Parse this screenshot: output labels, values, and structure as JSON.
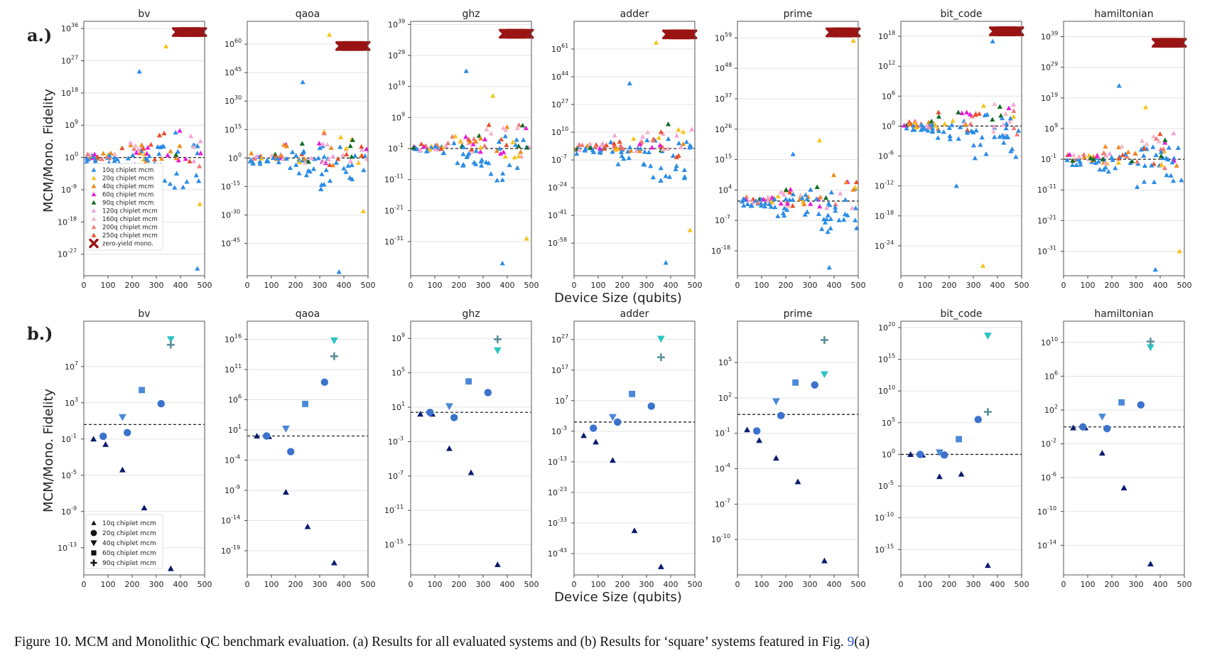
{
  "figure": {
    "row_a_label": "a.)",
    "row_b_label": "b.)",
    "ylabel": "MCM/Mono. Fidelity",
    "xlabel": "Device Size (qubits)",
    "x_ticks": [
      "0",
      "100",
      "200",
      "300",
      "400",
      "500"
    ],
    "caption_prefix": "Figure 10.   MCM and Monolithic QC benchmark evaluation. (a) Results for all evaluated systems and (b) Results for ‘square’ systems featured in Fig. ",
    "caption_ref": "9",
    "caption_suffix": "(a)"
  },
  "legend_a": [
    {
      "label": "10q chiplet mcm",
      "color": "#2b8ce6",
      "marker": "triangle"
    },
    {
      "label": "20q chiplet mcm",
      "color": "#f7c21a",
      "marker": "triangle"
    },
    {
      "label": "40q chiplet mcm",
      "color": "#f08a1c",
      "marker": "triangle"
    },
    {
      "label": "60q chiplet mcm",
      "color": "#e81ad8",
      "marker": "triangle"
    },
    {
      "label": "90q chiplet mcm",
      "color": "#116b22",
      "marker": "triangle"
    },
    {
      "label": "120q chiplet mcm",
      "color": "#f5a6d8",
      "marker": "triangle"
    },
    {
      "label": "160q chiplet mcm",
      "color": "#f2b8c8",
      "marker": "triangle"
    },
    {
      "label": "200q chiplet mcm",
      "color": "#f07a7a",
      "marker": "triangle"
    },
    {
      "label": "250q chiplet mcm",
      "color": "#e8502a",
      "marker": "triangle"
    },
    {
      "label": "zero-yield mono.",
      "color": "#9a1414",
      "marker": "x"
    }
  ],
  "legend_b": [
    {
      "label": "10q chiplet mcm",
      "marker": "triangle"
    },
    {
      "label": "20q chiplet mcm",
      "marker": "circle"
    },
    {
      "label": "40q chiplet mcm",
      "marker": "tri-down"
    },
    {
      "label": "60q chiplet mcm",
      "marker": "square"
    },
    {
      "label": "90q chiplet mcm",
      "marker": "plus"
    }
  ],
  "chart_data": [
    {
      "panel": "a",
      "type": "scatter",
      "title": "bv",
      "ylim_log10": [
        -33,
        38
      ],
      "yticks": [
        {
          "e": 36,
          "t": "36"
        },
        {
          "e": 27,
          "t": "27"
        },
        {
          "e": 18,
          "t": "18"
        },
        {
          "e": 9,
          "t": "9"
        },
        {
          "e": 0,
          "t": "0"
        },
        {
          "e": -9,
          "t": "-9"
        },
        {
          "e": -18,
          "t": "-18"
        },
        {
          "e": -27,
          "t": "-27"
        }
      ],
      "baseline_log10": 0,
      "zero_yield_log10": 35,
      "extremes_log10": [
        24,
        31,
        7,
        -13,
        -31
      ]
    },
    {
      "panel": "a",
      "type": "scatter",
      "title": "qaoa",
      "ylim_log10": [
        -62,
        72
      ],
      "yticks": [
        {
          "e": 60,
          "t": "60"
        },
        {
          "e": 45,
          "t": "45"
        },
        {
          "e": 30,
          "t": "30"
        },
        {
          "e": 15,
          "t": "15"
        },
        {
          "e": 0,
          "t": "0"
        },
        {
          "e": -15,
          "t": "-15"
        },
        {
          "e": -30,
          "t": "-30"
        },
        {
          "e": -45,
          "t": "-45"
        }
      ],
      "baseline_log10": 0,
      "zero_yield_log10": 59,
      "extremes_log10": [
        40,
        65,
        -60,
        -28
      ]
    },
    {
      "panel": "a",
      "type": "scatter",
      "title": "ghz",
      "ylim_log10": [
        -42,
        40
      ],
      "yticks": [
        {
          "e": 39,
          "t": "39"
        },
        {
          "e": 29,
          "t": "29"
        },
        {
          "e": 19,
          "t": "19"
        },
        {
          "e": 9,
          "t": "9"
        },
        {
          "e": -1,
          "t": "-1"
        },
        {
          "e": -11,
          "t": "-11"
        },
        {
          "e": -21,
          "t": "-21"
        },
        {
          "e": -31,
          "t": "-31"
        }
      ],
      "baseline_log10": -1,
      "zero_yield_log10": 36,
      "extremes_log10": [
        24,
        16,
        -38,
        -30
      ]
    },
    {
      "panel": "a",
      "type": "scatter",
      "title": "adder",
      "ylim_log10": [
        -78,
        78
      ],
      "yticks": [
        {
          "e": 61,
          "t": "61"
        },
        {
          "e": 44,
          "t": "44"
        },
        {
          "e": 27,
          "t": "27"
        },
        {
          "e": 10,
          "t": "10"
        },
        {
          "e": -7,
          "t": "-7"
        },
        {
          "e": -24,
          "t": "-24"
        },
        {
          "e": -41,
          "t": "-41"
        },
        {
          "e": -58,
          "t": "-58"
        }
      ],
      "baseline_log10": 0,
      "zero_yield_log10": 70,
      "extremes_log10": [
        40,
        65,
        -70,
        -50
      ]
    },
    {
      "panel": "a",
      "type": "scatter",
      "title": "prime",
      "ylim_log10": [
        -27,
        65
      ],
      "yticks": [
        {
          "e": 59,
          "t": "59"
        },
        {
          "e": 48,
          "t": "48"
        },
        {
          "e": 37,
          "t": "37"
        },
        {
          "e": 26,
          "t": "26"
        },
        {
          "e": 15,
          "t": "15"
        },
        {
          "e": 4,
          "t": "4"
        },
        {
          "e": -7,
          "t": "-7"
        },
        {
          "e": -18,
          "t": "-18"
        }
      ],
      "baseline_log10": 0,
      "zero_yield_log10": 61,
      "extremes_log10": [
        17,
        22,
        -24,
        58
      ]
    },
    {
      "panel": "a",
      "type": "scatter",
      "title": "bit_code",
      "ylim_log10": [
        -30,
        21
      ],
      "yticks": [
        {
          "e": 18,
          "t": "18"
        },
        {
          "e": 12,
          "t": "12"
        },
        {
          "e": 6,
          "t": "6"
        },
        {
          "e": 0,
          "t": "0"
        },
        {
          "e": -6,
          "t": "-6"
        },
        {
          "e": -12,
          "t": "-12"
        },
        {
          "e": -18,
          "t": "-18"
        },
        {
          "e": -24,
          "t": "-24"
        }
      ],
      "baseline_log10": 0,
      "zero_yield_log10": 19,
      "extremes_log10": [
        -12,
        -28,
        17
      ]
    },
    {
      "panel": "a",
      "type": "scatter",
      "title": "hamiltonian",
      "ylim_log10": [
        -39,
        44
      ],
      "yticks": [
        {
          "e": 39,
          "t": "39"
        },
        {
          "e": 29,
          "t": "29"
        },
        {
          "e": 19,
          "t": "19"
        },
        {
          "e": 9,
          "t": "9"
        },
        {
          "e": -1,
          "t": "-1"
        },
        {
          "e": -11,
          "t": "-11"
        },
        {
          "e": -21,
          "t": "-21"
        },
        {
          "e": -31,
          "t": "-31"
        }
      ],
      "baseline_log10": -1,
      "zero_yield_log10": 37,
      "extremes_log10": [
        23,
        16,
        -37,
        -31
      ]
    },
    {
      "panel": "b",
      "type": "scatter",
      "title": "bv",
      "ylim_log10": [
        -16,
        12
      ],
      "yticks": [
        {
          "e": 7,
          "t": "7"
        },
        {
          "e": 3,
          "t": "3"
        },
        {
          "e": -1,
          "t": "-1"
        },
        {
          "e": -5,
          "t": "-5"
        },
        {
          "e": -9,
          "t": "-9"
        },
        {
          "e": -13,
          "t": "-13"
        }
      ],
      "baseline_log10": 0.6,
      "points": [
        {
          "x": 40,
          "y": -1,
          "s": 0
        },
        {
          "x": 90,
          "y": -1.6,
          "s": 0
        },
        {
          "x": 160,
          "y": -4.4,
          "s": 0
        },
        {
          "x": 250,
          "y": -8.6,
          "s": 0
        },
        {
          "x": 360,
          "y": -15.3,
          "s": 0
        },
        {
          "x": 80,
          "y": -0.7,
          "s": 1
        },
        {
          "x": 180,
          "y": -0.3,
          "s": 1
        },
        {
          "x": 320,
          "y": 2.9,
          "s": 1
        },
        {
          "x": 160,
          "y": 1.4,
          "s": 2
        },
        {
          "x": 360,
          "y": 10,
          "s": 2,
          "c": "#2ec4c4"
        },
        {
          "x": 240,
          "y": 4.4,
          "s": 3
        },
        {
          "x": 360,
          "y": 9.4,
          "s": 4
        }
      ]
    },
    {
      "panel": "b",
      "type": "scatter",
      "title": "qaoa",
      "ylim_log10": [
        -23,
        19
      ],
      "yticks": [
        {
          "e": 16,
          "t": "16"
        },
        {
          "e": 11,
          "t": "11"
        },
        {
          "e": 6,
          "t": "6"
        },
        {
          "e": 1,
          "t": "1"
        },
        {
          "e": -4,
          "t": "-4"
        },
        {
          "e": -9,
          "t": "-9"
        },
        {
          "e": -14,
          "t": "-14"
        },
        {
          "e": -19,
          "t": "-19"
        }
      ],
      "baseline_log10": 0,
      "points": [
        {
          "x": 40,
          "y": 0,
          "s": 0
        },
        {
          "x": 90,
          "y": -0.1,
          "s": 0
        },
        {
          "x": 160,
          "y": -9.3,
          "s": 0
        },
        {
          "x": 250,
          "y": -15,
          "s": 0
        },
        {
          "x": 360,
          "y": -21,
          "s": 0
        },
        {
          "x": 80,
          "y": 0,
          "s": 1
        },
        {
          "x": 180,
          "y": -2.6,
          "s": 1
        },
        {
          "x": 320,
          "y": 8.9,
          "s": 1
        },
        {
          "x": 160,
          "y": 1.2,
          "s": 2
        },
        {
          "x": 360,
          "y": 15.8,
          "s": 2,
          "c": "#2ec4c4"
        },
        {
          "x": 240,
          "y": 5.3,
          "s": 3
        },
        {
          "x": 360,
          "y": 13.2,
          "s": 4
        }
      ]
    },
    {
      "panel": "b",
      "type": "scatter",
      "title": "ghz",
      "ylim_log10": [
        -18.5,
        11
      ],
      "yticks": [
        {
          "e": 9,
          "t": "9"
        },
        {
          "e": 5,
          "t": "5"
        },
        {
          "e": 1,
          "t": "1"
        },
        {
          "e": -3,
          "t": "-3"
        },
        {
          "e": -7,
          "t": "-7"
        },
        {
          "e": -11,
          "t": "-11"
        },
        {
          "e": -15,
          "t": "-15"
        }
      ],
      "baseline_log10": 0.4,
      "points": [
        {
          "x": 40,
          "y": 0.2,
          "s": 0
        },
        {
          "x": 90,
          "y": 0.2,
          "s": 0
        },
        {
          "x": 160,
          "y": -3.8,
          "s": 0
        },
        {
          "x": 250,
          "y": -6.6,
          "s": 0
        },
        {
          "x": 360,
          "y": -17.3,
          "s": 0
        },
        {
          "x": 80,
          "y": 0.4,
          "s": 1
        },
        {
          "x": 180,
          "y": -0.2,
          "s": 1
        },
        {
          "x": 320,
          "y": 2.7,
          "s": 1
        },
        {
          "x": 160,
          "y": 1.1,
          "s": 2
        },
        {
          "x": 360,
          "y": 7.6,
          "s": 2,
          "c": "#2ec4c4"
        },
        {
          "x": 240,
          "y": 4.0,
          "s": 3
        },
        {
          "x": 360,
          "y": 8.9,
          "s": 4
        }
      ]
    },
    {
      "panel": "b",
      "type": "scatter",
      "title": "adder",
      "ylim_log10": [
        -50,
        33
      ],
      "yticks": [
        {
          "e": 27,
          "t": "27"
        },
        {
          "e": 17,
          "t": "17"
        },
        {
          "e": 7,
          "t": "7"
        },
        {
          "e": -3,
          "t": "-3"
        },
        {
          "e": -13,
          "t": "-13"
        },
        {
          "e": -23,
          "t": "-23"
        },
        {
          "e": -33,
          "t": "-33"
        },
        {
          "e": -43,
          "t": "-43"
        }
      ],
      "baseline_log10": 0,
      "points": [
        {
          "x": 40,
          "y": -4.4,
          "s": 0
        },
        {
          "x": 90,
          "y": -6.5,
          "s": 0
        },
        {
          "x": 160,
          "y": -12.5,
          "s": 0
        },
        {
          "x": 250,
          "y": -35.5,
          "s": 0
        },
        {
          "x": 360,
          "y": -47.3,
          "s": 0
        },
        {
          "x": 80,
          "y": -2,
          "s": 1
        },
        {
          "x": 180,
          "y": 0,
          "s": 1
        },
        {
          "x": 320,
          "y": 5.2,
          "s": 1
        },
        {
          "x": 160,
          "y": 1.6,
          "s": 2
        },
        {
          "x": 360,
          "y": 27.2,
          "s": 2,
          "c": "#2ec4c4"
        },
        {
          "x": 240,
          "y": 9.2,
          "s": 3
        },
        {
          "x": 360,
          "y": 21.2,
          "s": 4
        }
      ]
    },
    {
      "panel": "b",
      "type": "scatter",
      "title": "prime",
      "ylim_log10": [
        -13,
        8.5
      ],
      "yticks": [
        {
          "e": 5,
          "t": "5"
        },
        {
          "e": 2,
          "t": "2"
        },
        {
          "e": -1,
          "t": "-1"
        },
        {
          "e": -4,
          "t": "-4"
        },
        {
          "e": -7,
          "t": "-7"
        },
        {
          "e": -10,
          "t": "-10"
        }
      ],
      "baseline_log10": 0.6,
      "points": [
        {
          "x": 40,
          "y": -0.7,
          "s": 0
        },
        {
          "x": 90,
          "y": -1.6,
          "s": 0
        },
        {
          "x": 160,
          "y": -3.1,
          "s": 0
        },
        {
          "x": 250,
          "y": -5.1,
          "s": 0
        },
        {
          "x": 360,
          "y": -11.8,
          "s": 0
        },
        {
          "x": 80,
          "y": -0.8,
          "s": 1
        },
        {
          "x": 180,
          "y": 0.5,
          "s": 1
        },
        {
          "x": 320,
          "y": 3.1,
          "s": 1
        },
        {
          "x": 160,
          "y": 1.7,
          "s": 2
        },
        {
          "x": 360,
          "y": 4.0,
          "s": 2,
          "c": "#2ec4c4"
        },
        {
          "x": 240,
          "y": 3.3,
          "s": 3
        },
        {
          "x": 360,
          "y": 6.9,
          "s": 4
        }
      ]
    },
    {
      "panel": "b",
      "type": "scatter",
      "title": "bit_code",
      "ylim_log10": [
        -19,
        21
      ],
      "yticks": [
        {
          "e": 20,
          "t": "20"
        },
        {
          "e": 15,
          "t": "15"
        },
        {
          "e": 10,
          "t": "10"
        },
        {
          "e": 5,
          "t": "5"
        },
        {
          "e": 0,
          "t": "0"
        },
        {
          "e": -5,
          "t": "-5"
        },
        {
          "e": -10,
          "t": "-10"
        },
        {
          "e": -15,
          "t": "-15"
        }
      ],
      "baseline_log10": 0,
      "points": [
        {
          "x": 40,
          "y": 0,
          "s": 0
        },
        {
          "x": 90,
          "y": -0.1,
          "s": 0
        },
        {
          "x": 160,
          "y": -3.5,
          "s": 0
        },
        {
          "x": 250,
          "y": -3.1,
          "s": 0
        },
        {
          "x": 360,
          "y": -17.5,
          "s": 0
        },
        {
          "x": 80,
          "y": 0,
          "s": 1
        },
        {
          "x": 180,
          "y": -0.1,
          "s": 1
        },
        {
          "x": 320,
          "y": 5.5,
          "s": 1
        },
        {
          "x": 160,
          "y": 0.3,
          "s": 2
        },
        {
          "x": 360,
          "y": 18.7,
          "s": 2,
          "c": "#2ec4c4"
        },
        {
          "x": 240,
          "y": 2.4,
          "s": 3
        },
        {
          "x": 360,
          "y": 6.7,
          "s": 4
        }
      ]
    },
    {
      "panel": "b",
      "type": "scatter",
      "title": "hamiltonian",
      "ylim_log10": [
        -17.5,
        12.5
      ],
      "yticks": [
        {
          "e": 10,
          "t": "10"
        },
        {
          "e": 6,
          "t": "6"
        },
        {
          "e": 2,
          "t": "2"
        },
        {
          "e": -2,
          "t": "-2"
        },
        {
          "e": -6,
          "t": "-6"
        },
        {
          "e": -10,
          "t": "-10"
        },
        {
          "e": -14,
          "t": "-14"
        }
      ],
      "baseline_log10": 0,
      "points": [
        {
          "x": 40,
          "y": -0.1,
          "s": 0
        },
        {
          "x": 90,
          "y": -0.1,
          "s": 0
        },
        {
          "x": 160,
          "y": -3.1,
          "s": 0
        },
        {
          "x": 250,
          "y": -7.2,
          "s": 0
        },
        {
          "x": 360,
          "y": -16.2,
          "s": 0
        },
        {
          "x": 80,
          "y": 0,
          "s": 1
        },
        {
          "x": 180,
          "y": -0.2,
          "s": 1
        },
        {
          "x": 320,
          "y": 2.6,
          "s": 1
        },
        {
          "x": 160,
          "y": 1.2,
          "s": 2
        },
        {
          "x": 360,
          "y": 9.4,
          "s": 2,
          "c": "#2ec4c4"
        },
        {
          "x": 240,
          "y": 2.9,
          "s": 3
        },
        {
          "x": 360,
          "y": 10.1,
          "s": 4
        }
      ]
    }
  ]
}
